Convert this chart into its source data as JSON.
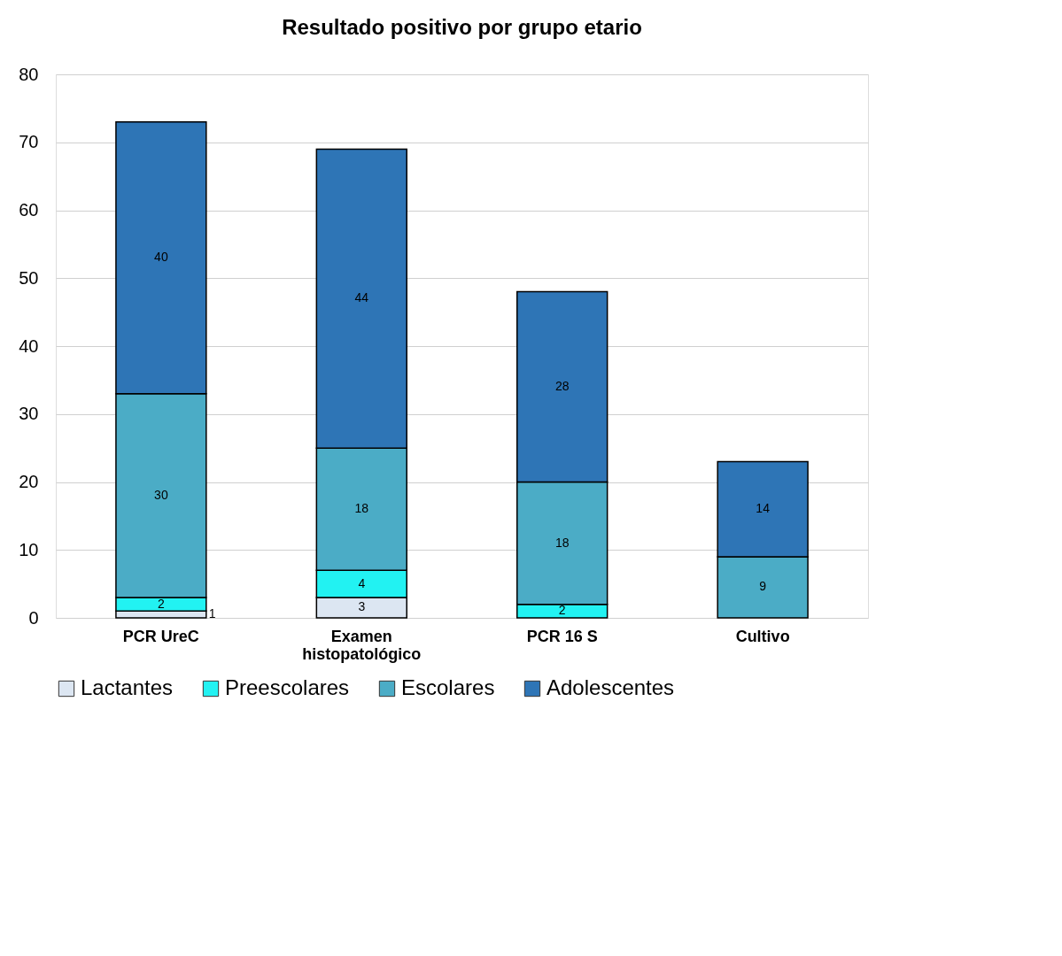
{
  "chart_data": {
    "type": "bar",
    "title": "Resultado positivo por grupo etario",
    "categories": [
      "PCR UreC",
      "Examen histopatológico",
      "PCR 16 S",
      "Cultivo"
    ],
    "stacked": true,
    "data_labels": true,
    "legend": "bottom",
    "grid": "y",
    "ylim": [
      0,
      80
    ],
    "yticks": [
      0,
      10,
      20,
      30,
      40,
      50,
      60,
      70,
      80
    ],
    "series": [
      {
        "name": "Lactantes",
        "color": "#dce6f2",
        "values": [
          1,
          3,
          null,
          null
        ]
      },
      {
        "name": "Preescolares",
        "color": "#22f2f2",
        "values": [
          2,
          4,
          2,
          null
        ]
      },
      {
        "name": "Escolares",
        "color": "#4bacc6",
        "values": [
          30,
          18,
          18,
          9
        ]
      },
      {
        "name": "Adolescentes",
        "color": "#2e75b6",
        "values": [
          40,
          44,
          28,
          14
        ]
      }
    ]
  }
}
